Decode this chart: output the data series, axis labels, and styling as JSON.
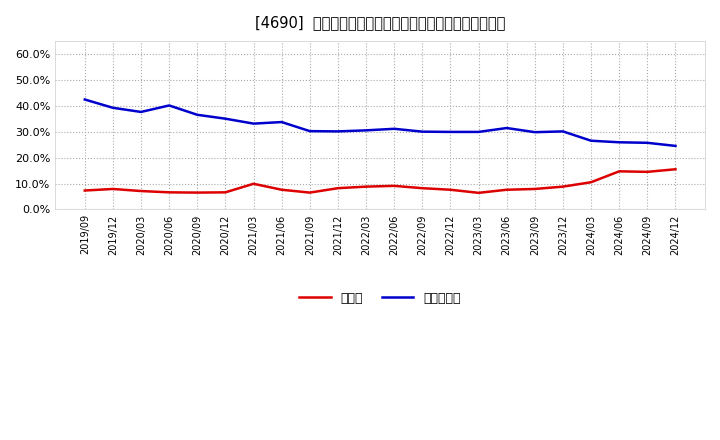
{
  "title": "[4690]  現預金、有利子負債の総資産に対する比率の推移",
  "x_labels": [
    "2019/09",
    "2019/12",
    "2020/03",
    "2020/06",
    "2020/09",
    "2020/12",
    "2021/03",
    "2021/06",
    "2021/09",
    "2021/12",
    "2022/03",
    "2022/06",
    "2022/09",
    "2022/12",
    "2023/03",
    "2023/06",
    "2023/09",
    "2023/12",
    "2024/03",
    "2024/06",
    "2024/09",
    "2024/12"
  ],
  "cash": [
    0.073,
    0.079,
    0.071,
    0.066,
    0.065,
    0.066,
    0.099,
    0.076,
    0.065,
    0.082,
    0.088,
    0.091,
    0.082,
    0.076,
    0.064,
    0.076,
    0.079,
    0.088,
    0.105,
    0.147,
    0.145,
    0.155
  ],
  "debt": [
    0.424,
    0.392,
    0.376,
    0.401,
    0.365,
    0.35,
    0.331,
    0.337,
    0.302,
    0.301,
    0.305,
    0.311,
    0.3,
    0.299,
    0.299,
    0.314,
    0.298,
    0.301,
    0.265,
    0.259,
    0.257,
    0.245
  ],
  "cash_color": "#dd0000",
  "debt_color": "#0000cc",
  "background_color": "#ffffff",
  "grid_color": "#aaaaaa",
  "legend_cash": "現預金",
  "legend_debt": "有利子負債",
  "ylim": [
    0.0,
    0.65
  ],
  "yticks": [
    0.0,
    0.1,
    0.2,
    0.3,
    0.4,
    0.5,
    0.6
  ]
}
